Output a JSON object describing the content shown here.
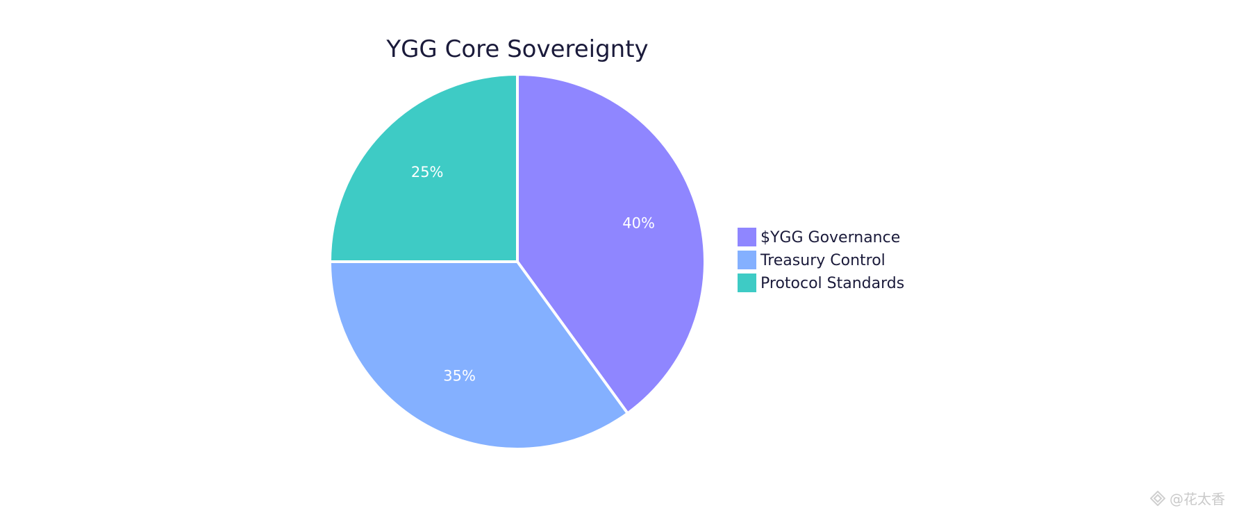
{
  "chart_data": {
    "type": "pie",
    "title": "YGG Core Sovereignty",
    "categories": [
      "$YGG Governance",
      "Treasury Control",
      "Protocol Standards"
    ],
    "values": [
      40,
      35,
      25
    ],
    "labels": [
      "40%",
      "35%",
      "25%"
    ],
    "colors": [
      "#8f86ff",
      "#84b0ff",
      "#3ecbc5"
    ],
    "legend_position": "right"
  },
  "watermark": {
    "text": "@花太香",
    "icon": "diamond-logo-icon"
  }
}
